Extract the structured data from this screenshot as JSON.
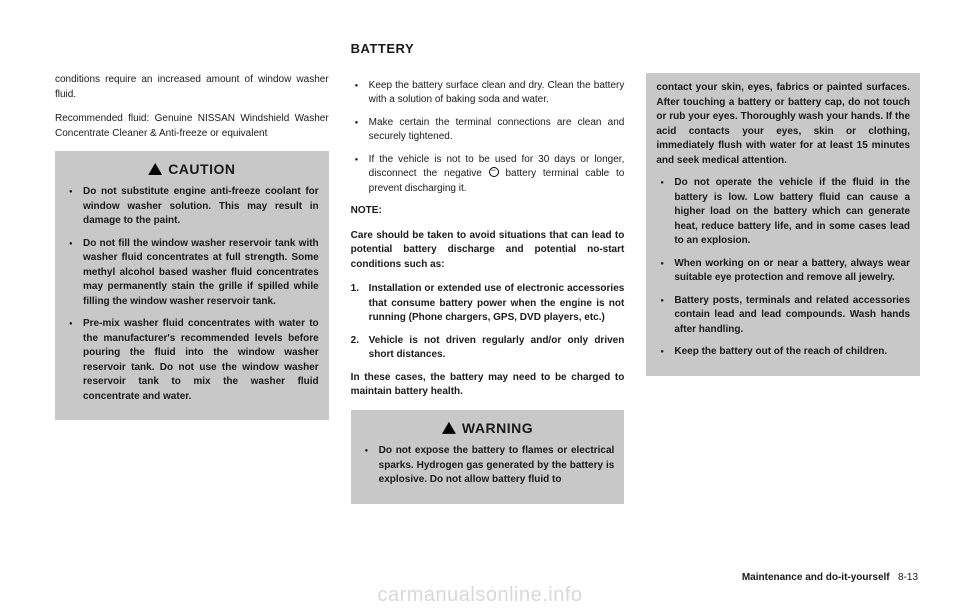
{
  "header": {
    "title": "BATTERY"
  },
  "col1": {
    "p1": "conditions require an increased amount of window washer fluid.",
    "p2": "Recommended fluid: Genuine NISSAN Wind­shield Washer Concentrate Cleaner & Anti-freeze or equivalent",
    "caution": {
      "label": "CAUTION",
      "b1": "Do not substitute engine anti-freeze coolant for window washer solution. This may result in damage to the paint.",
      "b2": "Do not fill the window washer reservoir tank with washer fluid concentrates at full strength. Some methyl alcohol based washer fluid concentrates may permanently stain the grille if spilled while filling the window washer reservoir tank.",
      "b3": "Pre-mix washer fluid concentrates with water to the manufacturer's recommended levels before pouring the fluid into the window washer reservoir tank. Do not use the window washer reservoir tank to mix the washer fluid concentrate and water."
    }
  },
  "col2": {
    "b1_a": "Keep the battery surface clean and dry. Clean the battery with a solution of baking soda and water.",
    "b1_b": "Make certain the terminal connections are clean and securely tightened.",
    "b1_c_pre": "If the vehicle is not to be used for 30 days or longer, disconnect the negative ",
    "b1_c_post": " battery terminal cable to prevent discharging it.",
    "note": "NOTE:",
    "p_note": "Care should be taken to avoid situations that can lead to potential battery discharge and potential no-start conditions such as:",
    "n1": "Installation or extended use of electro­nic accessories that consume battery power when the engine is not running (Phone chargers, GPS, DVD players, etc.)",
    "n2": "Vehicle is not driven regularly and/or only driven short distances.",
    "p_end": "In these cases, the battery may need to be charged to maintain battery health.",
    "warn": {
      "label": "WARNING",
      "b1": "Do not expose the battery to flames or electrical sparks. Hydrogen gas generated by the battery is explo­sive. Do not allow battery fluid to"
    }
  },
  "col3": {
    "b1": "contact your skin, eyes, fabrics or painted surfaces. After touching a battery or battery cap, do not touch or rub your eyes. Thoroughly wash your hands. If the acid contacts your eyes, skin or clothing, immediately flush with water for at least 15 minutes and seek medical attention.",
    "b2": "Do not operate the vehicle if the fluid in the battery is low. Low battery fluid can cause a higher load on the battery which can generate heat, reduce battery life, and in some cases lead to an explosion.",
    "b3": "When working on or near a battery, always wear suitable eye protection and remove all jewelry.",
    "b4": "Battery posts, terminals and related accessories contain lead and lead compounds. Wash hands after handling.",
    "b5": "Keep the battery out of the reach of children."
  },
  "footer": {
    "section": "Maintenance and do-it-yourself",
    "page": "8-13"
  },
  "watermark": "carmanualsonline.info"
}
